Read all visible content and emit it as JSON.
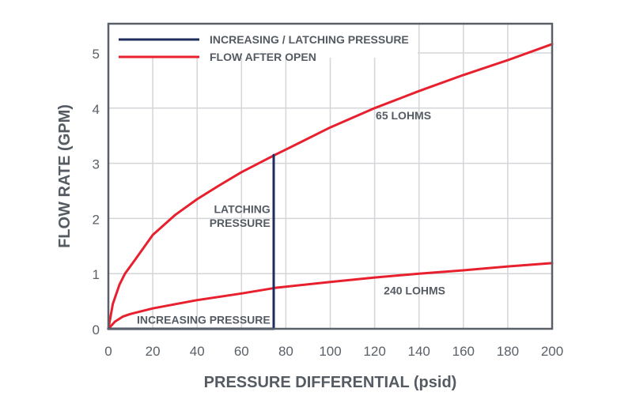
{
  "chart_data": {
    "type": "line",
    "title": "",
    "xlabel": "PRESSURE DIFFERENTIAL (psid)",
    "ylabel": "FLOW RATE (GPM)",
    "xlim": [
      0,
      200
    ],
    "ylim": [
      0,
      5.5
    ],
    "x_ticks": [
      0,
      20,
      40,
      60,
      80,
      100,
      120,
      140,
      160,
      180,
      200
    ],
    "y_ticks": [
      0,
      1,
      2,
      3,
      4,
      5
    ],
    "grid": true,
    "legend": {
      "placement": "top-left",
      "entries": [
        {
          "label": "INCREASING / LATCHING PRESSURE",
          "color": "#1f2d5c"
        },
        {
          "label": "FLOW AFTER OPEN",
          "color": "#e8202e"
        }
      ]
    },
    "series": [
      {
        "name": "65 LOHMS",
        "legend": "FLOW AFTER OPEN",
        "color": "#e8202e",
        "x": [
          0,
          2,
          5,
          7.5,
          12,
          20,
          30,
          40,
          50,
          60,
          75,
          80,
          100,
          120,
          140,
          160,
          180,
          200
        ],
        "y": [
          0,
          0.45,
          0.8,
          1.0,
          1.25,
          1.7,
          2.06,
          2.35,
          2.6,
          2.84,
          3.15,
          3.25,
          3.65,
          4.0,
          4.31,
          4.6,
          4.87,
          5.16
        ]
      },
      {
        "name": "240 LOHMS",
        "legend": "FLOW AFTER OPEN",
        "color": "#e8202e",
        "x": [
          0,
          3,
          6.5,
          10,
          20,
          40,
          60,
          75,
          100,
          120,
          140,
          160,
          180,
          200
        ],
        "y": [
          0,
          0.13,
          0.22,
          0.27,
          0.37,
          0.52,
          0.64,
          0.74,
          0.85,
          0.93,
          1.0,
          1.06,
          1.13,
          1.19
        ]
      },
      {
        "name": "INCREASING / LATCHING PRESSURE",
        "legend": "INCREASING / LATCHING PRESSURE",
        "color": "#1f2d5c",
        "x": [
          0,
          74.5,
          74.5
        ],
        "y": [
          0,
          0,
          3.15
        ]
      }
    ],
    "annotations": [
      {
        "text": "65 LOHMS",
        "x": 133,
        "y": 3.8
      },
      {
        "text": "240 LOHMS",
        "x": 138,
        "y": 0.62
      },
      {
        "text": "LATCHING",
        "x": 73,
        "y": 2.1,
        "anchor": "end"
      },
      {
        "text": "PRESSURE",
        "x": 73,
        "y": 1.85,
        "anchor": "end"
      },
      {
        "text": "INCREASING PRESSURE",
        "x": 73,
        "y": 0.09,
        "anchor": "end"
      }
    ]
  }
}
